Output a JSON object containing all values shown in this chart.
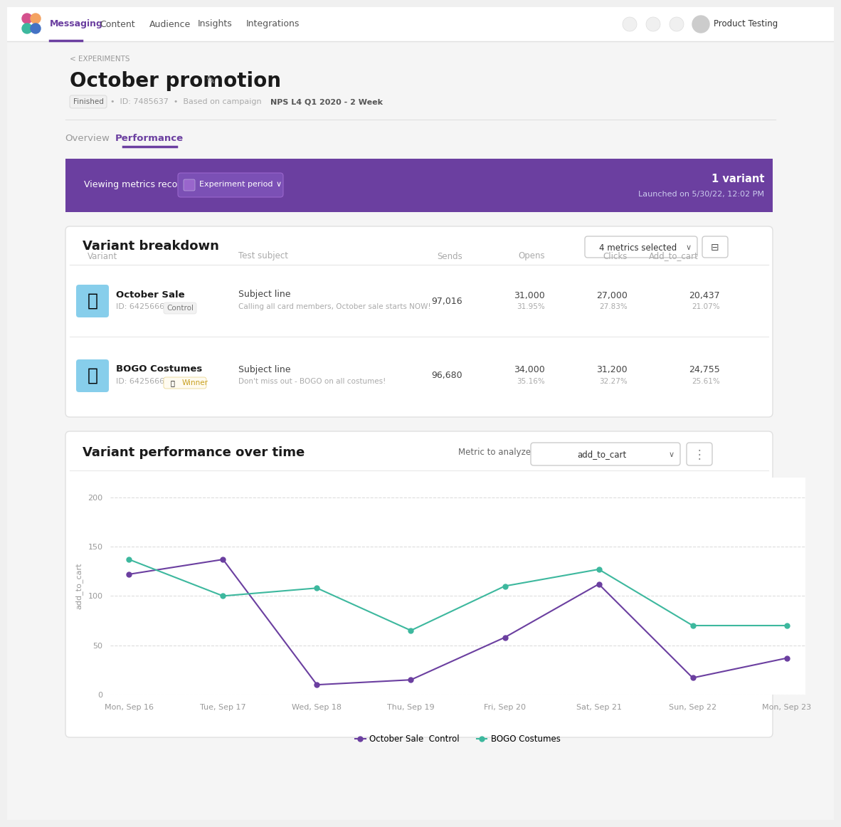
{
  "title": "October promotion",
  "nav_items": [
    "Messaging",
    "Content",
    "Audience",
    "Insights",
    "Integrations"
  ],
  "active_nav": "Messaging",
  "back_text": "< EXPERIMENTS",
  "status_text": "Finished",
  "id_text": "ID: 7485637",
  "campaign_text": "Based on campaign NPS L4 Q1 2020 - 2 Week",
  "tabs": [
    "Overview",
    "Performance"
  ],
  "active_tab": "Performance",
  "banner_text": "Viewing metrics recorded",
  "banner_button": "Experiment period",
  "banner_right_line1": "1 variant",
  "banner_right_line2": "Launched on 5/30/22, 12:02 PM",
  "section_title": "Variant breakdown",
  "dropdown_text": "4 metrics selected",
  "table_headers": [
    "Variant",
    "Test subject",
    "Sends",
    "Opens",
    "Clicks",
    "Add_to_cart"
  ],
  "variant1_name": "October Sale",
  "variant1_id": "ID: 64256666",
  "variant1_tag": "Control",
  "variant1_subject": "Subject line",
  "variant1_subject_body": "Calling all card members, October sale starts NOW!",
  "variant1_sends": "97,016",
  "variant1_opens": "31,000",
  "variant1_opens_pct": "31.95%",
  "variant1_clicks": "27,000",
  "variant1_clicks_pct": "27.83%",
  "variant1_atc": "20,437",
  "variant1_atc_pct": "21.07%",
  "variant2_name": "BOGO Costumes",
  "variant2_id": "ID: 64256668",
  "variant2_tag": "Winner",
  "variant2_subject": "Subject line",
  "variant2_subject_body": "Don't miss out - BOGO on all costumes!",
  "variant2_sends": "96,680",
  "variant2_opens": "34,000",
  "variant2_opens_pct": "35.16%",
  "variant2_clicks": "31,200",
  "variant2_clicks_pct": "32.27%",
  "variant2_atc": "24,755",
  "variant2_atc_pct": "25.61%",
  "chart_title": "Variant performance over time",
  "chart_metric_label": "Metric to analyze",
  "chart_metric_value": "add_to_cart",
  "chart_ylabel": "add_to_cart",
  "chart_x_labels": [
    "Mon, Sep 16",
    "Tue, Sep 17",
    "Wed, Sep 18",
    "Thu, Sep 19",
    "Fri, Sep 20",
    "Sat, Sep 21",
    "Sun, Sep 22",
    "Mon, Sep 23"
  ],
  "control_values": [
    122,
    137,
    10,
    15,
    58,
    112,
    17,
    37
  ],
  "bogo_values": [
    137,
    100,
    108,
    65,
    110,
    127,
    70,
    70
  ],
  "control_color": "#6b3fa0",
  "bogo_color": "#3db89e",
  "yticks": [
    0,
    50,
    100,
    150,
    200
  ],
  "ylim": [
    0,
    220
  ],
  "legend_label1": "October Sale  Control",
  "legend_label2": "BOGO Costumes",
  "bg_color": "#f5f5f5",
  "panel_bg": "#ffffff",
  "nav_bg": "#ffffff",
  "banner_bg": "#6b3fa0",
  "banner_fg": "#ffffff",
  "purple_color": "#6b3fa0",
  "teal_color": "#3db89e"
}
